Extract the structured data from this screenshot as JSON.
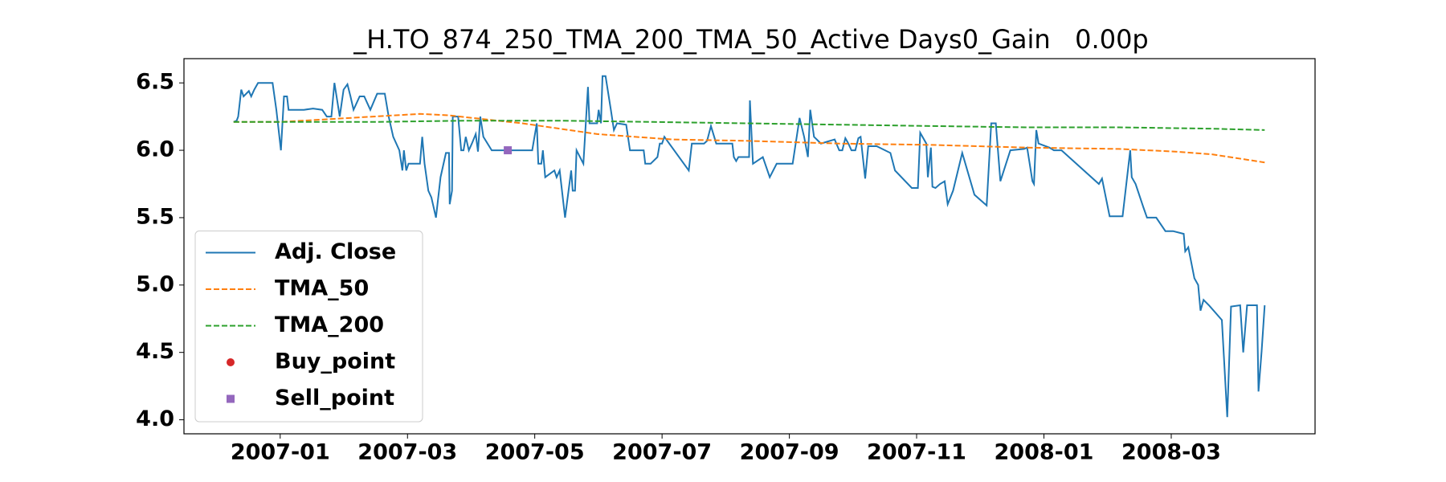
{
  "chart_data": {
    "type": "line",
    "title": "_H.TO_874_250_TMA_200_TMA_50_Active Days0_Gain   0.00p",
    "xlim": [
      2006.874,
      2008.355
    ],
    "ylim": [
      3.896,
      6.68
    ],
    "xticks": [
      {
        "value": 2007.0,
        "label": "2007-01"
      },
      {
        "value": 2007.1667,
        "label": "2007-03"
      },
      {
        "value": 2007.3333,
        "label": "2007-05"
      },
      {
        "value": 2007.5,
        "label": "2007-07"
      },
      {
        "value": 2007.6667,
        "label": "2007-09"
      },
      {
        "value": 2007.8333,
        "label": "2007-11"
      },
      {
        "value": 2008.0,
        "label": "2008-01"
      },
      {
        "value": 2008.1667,
        "label": "2008-03"
      }
    ],
    "yticks": [
      {
        "value": 4,
        "label": "4.0"
      },
      4.5,
      {
        "value": 5,
        "label": "5.0"
      },
      5.5,
      {
        "value": 6,
        "label": "6.0"
      },
      6.5
    ],
    "legend": "lower left",
    "series": [
      {
        "name": "Adj. Close",
        "color": "#1f77b4",
        "style": "solid",
        "x": [
          2006.939,
          2006.943,
          2006.945,
          2006.949,
          2006.952,
          2006.959,
          2006.962,
          2006.966,
          2006.971,
          2006.99,
          2006.995,
          2007.001,
          2007.005,
          2007.009,
          2007.011,
          2007.031,
          2007.043,
          2007.055,
          2007.061,
          2007.067,
          2007.071,
          2007.078,
          2007.083,
          2007.088,
          2007.092,
          2007.096,
          2007.104,
          2007.11,
          2007.118,
          2007.127,
          2007.137,
          2007.142,
          2007.148,
          2007.156,
          2007.16,
          2007.162,
          2007.165,
          2007.168,
          2007.183,
          2007.186,
          2007.189,
          2007.194,
          2007.198,
          2007.204,
          2007.21,
          2007.217,
          2007.221,
          2007.222,
          2007.225,
          2007.226,
          2007.233,
          2007.237,
          2007.24,
          2007.243,
          2007.247,
          2007.251,
          2007.256,
          2007.259,
          2007.262,
          2007.266,
          2007.277,
          2007.33,
          2007.336,
          2007.338,
          2007.342,
          2007.344,
          2007.347,
          2007.359,
          2007.362,
          2007.366,
          2007.373,
          2007.381,
          2007.383,
          2007.386,
          2007.388,
          2007.397,
          2007.403,
          2007.405,
          2007.415,
          2007.417,
          2007.42,
          2007.422,
          2007.426,
          2007.433,
          2007.437,
          2007.441,
          2007.453,
          2007.458,
          2007.476,
          2007.478,
          2007.485,
          2007.494,
          2007.497,
          2007.5,
          2007.503,
          2007.535,
          2007.539,
          2007.555,
          2007.559,
          2007.564,
          2007.571,
          2007.592,
          2007.594,
          2007.597,
          2007.6,
          2007.614,
          2007.615,
          2007.619,
          2007.632,
          2007.641,
          2007.65,
          2007.671,
          2007.68,
          2007.686,
          2007.691,
          2007.694,
          2007.699,
          2007.708,
          2007.714,
          2007.726,
          2007.732,
          2007.736,
          2007.74,
          2007.744,
          2007.748,
          2007.753,
          2007.757,
          2007.76,
          2007.766,
          2007.77,
          2007.781,
          2007.799,
          2007.805,
          2007.827,
          2007.835,
          2007.838,
          2007.846,
          2007.848,
          2007.852,
          2007.854,
          2007.858,
          2007.864,
          2007.87,
          2007.874,
          2007.881,
          2007.893,
          2007.909,
          2007.925,
          2007.931,
          2007.937,
          2007.943,
          2007.956,
          2007.974,
          2007.978,
          2007.985,
          2007.987,
          2007.99,
          2007.993,
          2008.007,
          2008.013,
          2008.023,
          2008.072,
          2008.076,
          2008.086,
          2008.098,
          2008.103,
          2008.113,
          2008.115,
          2008.12,
          2008.13,
          2008.135,
          2008.147,
          2008.159,
          2008.169,
          2008.183,
          2008.185,
          2008.189,
          2008.197,
          2008.202,
          2008.205,
          2008.209,
          2008.216,
          2008.233,
          2008.24,
          2008.245,
          2008.257,
          2008.261,
          2008.266,
          2008.279,
          2008.281,
          2008.285,
          2008.289
        ],
        "values": [
          6.21,
          6.22,
          6.25,
          6.45,
          6.4,
          6.44,
          6.4,
          6.45,
          6.5,
          6.5,
          6.3,
          6.0,
          6.4,
          6.4,
          6.3,
          6.3,
          6.31,
          6.3,
          6.25,
          6.25,
          6.5,
          6.25,
          6.45,
          6.49,
          6.4,
          6.3,
          6.4,
          6.4,
          6.3,
          6.42,
          6.42,
          6.25,
          6.1,
          6.0,
          5.85,
          6.0,
          5.85,
          5.9,
          5.9,
          6.1,
          5.9,
          5.7,
          5.65,
          5.5,
          5.8,
          5.98,
          5.98,
          5.6,
          5.7,
          6.25,
          6.25,
          6.0,
          6.0,
          6.1,
          6.0,
          6.05,
          6.12,
          5.99,
          6.25,
          6.1,
          6.0,
          6.0,
          6.2,
          5.9,
          5.9,
          6.0,
          5.8,
          5.85,
          5.8,
          5.85,
          5.5,
          5.85,
          5.7,
          5.7,
          6.0,
          5.9,
          6.47,
          6.2,
          6.2,
          6.3,
          6.2,
          6.55,
          6.55,
          6.3,
          6.15,
          6.2,
          6.19,
          6.0,
          6.0,
          5.9,
          5.9,
          5.95,
          6.05,
          6.05,
          6.1,
          5.85,
          6.05,
          6.05,
          6.07,
          6.18,
          6.05,
          6.05,
          5.95,
          5.92,
          5.95,
          5.95,
          6.37,
          5.9,
          5.95,
          5.8,
          5.9,
          5.9,
          6.24,
          6.1,
          5.95,
          6.3,
          6.1,
          6.05,
          6.06,
          6.08,
          6.0,
          6.0,
          6.09,
          6.05,
          6.0,
          6.0,
          6.09,
          6.1,
          5.79,
          6.03,
          6.03,
          5.98,
          5.85,
          5.72,
          5.72,
          6.13,
          6.05,
          5.8,
          6.02,
          5.73,
          5.72,
          5.75,
          5.77,
          5.6,
          5.7,
          5.98,
          5.67,
          5.59,
          6.2,
          6.2,
          5.77,
          6.0,
          6.01,
          6.02,
          5.77,
          5.75,
          6.15,
          6.05,
          6.02,
          6.0,
          6.0,
          5.75,
          5.79,
          5.51,
          5.51,
          5.51,
          6.0,
          5.8,
          5.75,
          5.58,
          5.5,
          5.5,
          5.4,
          5.4,
          5.38,
          5.25,
          5.28,
          5.05,
          5.0,
          4.81,
          4.89,
          4.85,
          4.74,
          4.02,
          4.84,
          4.85,
          4.5,
          4.85,
          4.85,
          4.21,
          4.51,
          4.85
        ]
      },
      {
        "name": "TMA_50",
        "color": "#ff7f0e",
        "style": "dashed",
        "x": [
          2006.939,
          2007.0,
          2007.061,
          2007.122,
          2007.183,
          2007.22,
          2007.268,
          2007.317,
          2007.366,
          2007.415,
          2007.464,
          2007.513,
          2007.61,
          2007.732,
          2007.854,
          2007.976,
          2008.098,
          2008.172,
          2008.22,
          2008.289
        ],
        "values": [
          6.21,
          6.21,
          6.23,
          6.25,
          6.27,
          6.26,
          6.23,
          6.2,
          6.16,
          6.12,
          6.1,
          6.08,
          6.07,
          6.05,
          6.04,
          6.02,
          6.01,
          5.99,
          5.97,
          5.91
        ]
      },
      {
        "name": "TMA_200",
        "color": "#2ca02c",
        "style": "dashed",
        "x": [
          2006.939,
          2007.122,
          2007.244,
          2007.366,
          2007.488,
          2007.61,
          2007.732,
          2007.854,
          2007.976,
          2008.098,
          2008.22,
          2008.289
        ],
        "values": [
          6.21,
          6.21,
          6.22,
          6.22,
          6.21,
          6.2,
          6.19,
          6.18,
          6.17,
          6.17,
          6.16,
          6.15
        ]
      },
      {
        "name": "Buy_point",
        "color": "#d62728",
        "style": "circle",
        "x": [],
        "values": []
      },
      {
        "name": "Sell_point",
        "color": "#9467bd",
        "style": "square",
        "x": [
          2007.298
        ],
        "values": [
          6.0
        ]
      }
    ]
  }
}
